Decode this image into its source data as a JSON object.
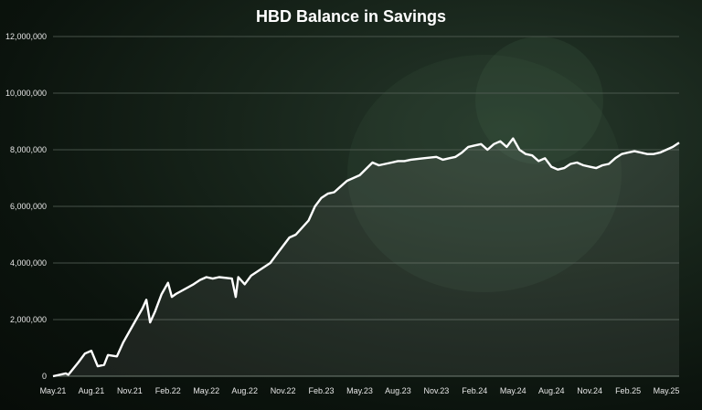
{
  "chart_data": {
    "type": "area",
    "title": "HBD Balance in Savings",
    "xlabel": "",
    "ylabel": "",
    "ylim": [
      0,
      12000000
    ],
    "yticks": [
      0,
      2000000,
      4000000,
      6000000,
      8000000,
      10000000,
      12000000
    ],
    "ytick_labels": [
      "0",
      "2,000,000",
      "4,000,000",
      "6,000,000",
      "8,000,000",
      "10,000,000",
      "12,000,000"
    ],
    "xlim": [
      0,
      49
    ],
    "xticks": [
      0,
      3,
      6,
      9,
      12,
      15,
      18,
      21,
      24,
      27,
      30,
      33,
      36,
      39,
      42,
      45,
      48
    ],
    "xtick_labels": [
      "May.21",
      "Aug.21",
      "Nov.21",
      "Feb.22",
      "May.22",
      "Aug.22",
      "Nov.22",
      "Feb.23",
      "May.23",
      "Aug.23",
      "Nov.23",
      "Feb.24",
      "May.24",
      "Aug.24",
      "Nov.24",
      "Feb.25",
      "May.25"
    ],
    "grid": true,
    "legend": "none",
    "colors": {
      "line": "#ffffff",
      "fill": "#ffffff",
      "grid": "#5a665c",
      "text": "#e6e6e6"
    },
    "series": [
      {
        "x": [
          0,
          1,
          1.2,
          2,
          2.5,
          3,
          3.5,
          4,
          4.3,
          5,
          5.5,
          6,
          6.5,
          7,
          7.3,
          7.6,
          8,
          8.5,
          9,
          9.3,
          9.6,
          10,
          11,
          11.5,
          12,
          12.5,
          13,
          14,
          14.3,
          14.5,
          15,
          15.5,
          16,
          17,
          17.5,
          18,
          18.5,
          19,
          20,
          20.5,
          21,
          21.5,
          22,
          22.5,
          23,
          24,
          25,
          25.5,
          26,
          26.5,
          27,
          27.5,
          28,
          29,
          30,
          30.5,
          31,
          31.5,
          32,
          32.5,
          33,
          33.5,
          34,
          34.5,
          35,
          35.5,
          36,
          36.5,
          37,
          37.5,
          38,
          38.5,
          39,
          39.5,
          40,
          40.5,
          41,
          41.5,
          42,
          42.5,
          43,
          43.5,
          44,
          44.5,
          45,
          45.5,
          46,
          46.5,
          47,
          47.5,
          48,
          48.5,
          49
        ],
        "y": [
          0,
          100000,
          50000,
          500000,
          800000,
          900000,
          350000,
          400000,
          750000,
          700000,
          1200000,
          1600000,
          2000000,
          2400000,
          2700000,
          1900000,
          2300000,
          2900000,
          3300000,
          2800000,
          2900000,
          3000000,
          3250000,
          3400000,
          3500000,
          3450000,
          3500000,
          3450000,
          2800000,
          3500000,
          3250000,
          3550000,
          3700000,
          4000000,
          4300000,
          4600000,
          4900000,
          5000000,
          5500000,
          6000000,
          6300000,
          6450000,
          6500000,
          6700000,
          6900000,
          7100000,
          7550000,
          7450000,
          7500000,
          7550000,
          7600000,
          7600000,
          7650000,
          7700000,
          7750000,
          7650000,
          7700000,
          7750000,
          7900000,
          8100000,
          8150000,
          8200000,
          8000000,
          8200000,
          8300000,
          8100000,
          8400000,
          8000000,
          7850000,
          7800000,
          7600000,
          7700000,
          7400000,
          7300000,
          7350000,
          7500000,
          7550000,
          7450000,
          7400000,
          7350000,
          7450000,
          7500000,
          7700000,
          7850000,
          7900000,
          7950000,
          7900000,
          7850000,
          7850000,
          7900000,
          8000000,
          8100000,
          8250000
        ]
      }
    ]
  }
}
